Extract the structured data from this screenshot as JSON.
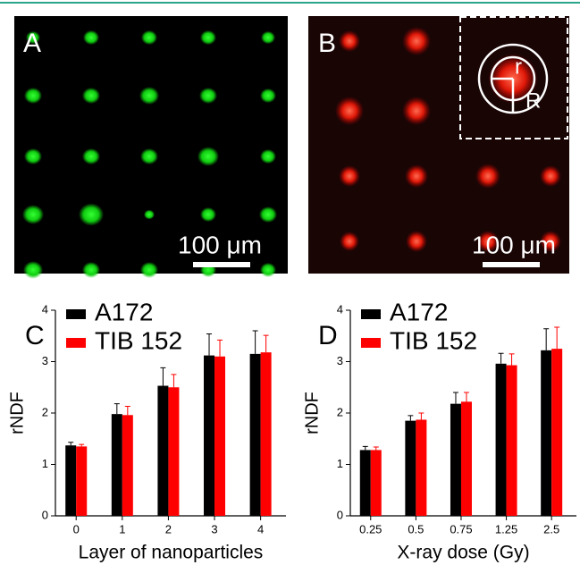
{
  "images": [
    {
      "label": "A",
      "scale_bar": "100 μm"
    },
    {
      "label": "B",
      "scale_bar": "100 μm",
      "inset_labels": [
        "r",
        "R"
      ]
    }
  ],
  "chart_data": [
    {
      "type": "bar",
      "panel_label": "C",
      "x_label": "Layer of nanoparticles",
      "y_label": "rNDF",
      "categories": [
        "0",
        "1",
        "2",
        "3",
        "4"
      ],
      "series": [
        {
          "name": "A172",
          "color": "#000000",
          "values": [
            1.37,
            1.98,
            2.53,
            3.12,
            3.15
          ],
          "errors": [
            0.06,
            0.2,
            0.35,
            0.42,
            0.45
          ]
        },
        {
          "name": "TIB 152",
          "color": "#ff0000",
          "values": [
            1.35,
            1.96,
            2.5,
            3.1,
            3.18
          ],
          "errors": [
            0.04,
            0.17,
            0.25,
            0.32,
            0.33
          ]
        }
      ],
      "ylim": [
        0,
        4
      ],
      "yticks": [
        0,
        1,
        2,
        3,
        4
      ],
      "legend": "top-left"
    },
    {
      "type": "bar",
      "panel_label": "D",
      "x_label": "X-ray dose (Gy)",
      "y_label": "rNDF",
      "categories": [
        "0.25",
        "0.5",
        "0.75",
        "1.25",
        "2.5"
      ],
      "series": [
        {
          "name": "A172",
          "color": "#000000",
          "values": [
            1.28,
            1.85,
            2.18,
            2.96,
            3.22
          ],
          "errors": [
            0.07,
            0.1,
            0.22,
            0.2,
            0.42
          ]
        },
        {
          "name": "TIB 152",
          "color": "#ff0000",
          "values": [
            1.28,
            1.87,
            2.22,
            2.93,
            3.25
          ],
          "errors": [
            0.06,
            0.13,
            0.18,
            0.22,
            0.42
          ]
        }
      ],
      "ylim": [
        0,
        4
      ],
      "yticks": [
        0,
        1,
        2,
        3,
        4
      ],
      "legend": "top-left"
    }
  ]
}
